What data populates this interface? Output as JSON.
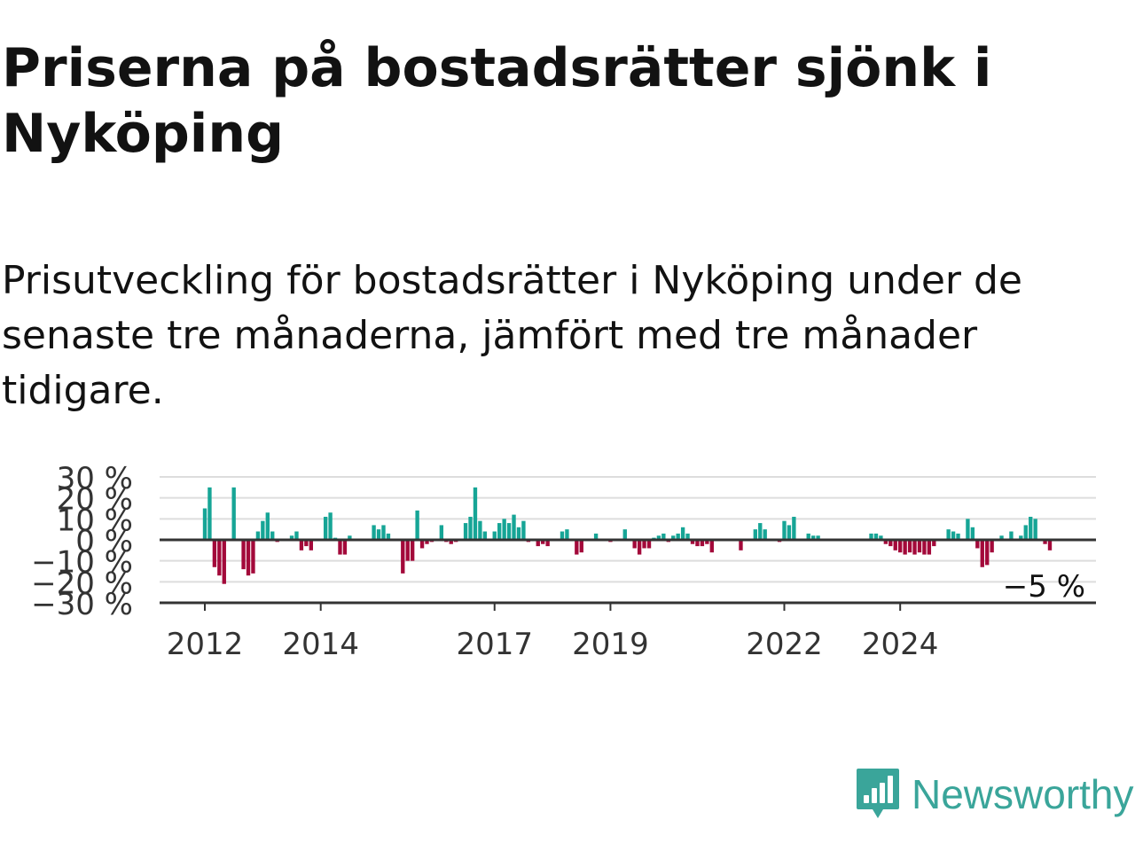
{
  "title": "Priserna på bostadsrätter sjönk i Nyköping",
  "subtitle": "Prisutveckling för bostadsrätter i Nyköping under de senaste tre månaderna, jämfört med tre månader tidigare.",
  "brand": {
    "name": "Newsworthy",
    "icon": "newsworthy-logo-icon",
    "color": "#3aa59a"
  },
  "colors": {
    "positive": "#16a596",
    "negative": "#a3093a",
    "grid": "#dddddd",
    "axis": "#333333"
  },
  "chart_data": {
    "type": "bar",
    "title": "Priserna på bostadsrätter sjönk i Nyköping",
    "xlabel": "",
    "ylabel": "",
    "ylim": [
      -30,
      30
    ],
    "yticks": [
      30,
      20,
      10,
      0,
      -10,
      -20,
      -30
    ],
    "ytick_labels": [
      "30 %",
      "20 %",
      "10 %",
      "0 %",
      "−10 %",
      "−20 %",
      "−30 %"
    ],
    "xticks": [
      2012,
      2014,
      2017,
      2019,
      2022,
      2024
    ],
    "x_start": "2012-01",
    "frequency": "monthly",
    "grid": true,
    "last_value_label": "−5 %",
    "values": [
      15,
      25,
      -13,
      -17,
      -21,
      0,
      25,
      0,
      -14,
      -17,
      -16,
      4,
      9,
      13,
      4,
      -1,
      0,
      0,
      2,
      4,
      -5,
      -3,
      -5,
      0,
      0,
      11,
      13,
      1,
      -7,
      -7,
      2,
      0,
      0,
      0,
      0,
      7,
      5,
      7,
      3,
      0,
      0,
      -16,
      -10,
      -10,
      14,
      -4,
      -2,
      -1,
      0,
      7,
      -1,
      -2,
      -1,
      0,
      8,
      11,
      25,
      9,
      4,
      0,
      4,
      8,
      10,
      8,
      12,
      6,
      9,
      -1,
      0,
      -3,
      -2,
      -3,
      0,
      0,
      4,
      5,
      0,
      -7,
      -6,
      0,
      0,
      3,
      0,
      0,
      -1,
      0,
      0,
      5,
      0,
      -4,
      -7,
      -4,
      -4,
      1,
      2,
      3,
      -1,
      2,
      3,
      6,
      3,
      -2,
      -3,
      -3,
      -2,
      -6,
      0,
      0,
      0,
      0,
      0,
      -5,
      0,
      0,
      5,
      8,
      5,
      0,
      0,
      -1,
      9,
      7,
      11,
      0,
      0,
      3,
      2,
      2,
      0,
      0,
      0,
      0,
      0,
      0,
      0,
      0,
      0,
      0,
      3,
      3,
      2,
      -2,
      -3,
      -5,
      -6,
      -7,
      -6,
      -7,
      -6,
      -7,
      -7,
      -3,
      0,
      0,
      5,
      4,
      3,
      0,
      10,
      6,
      -4,
      -13,
      -12,
      -6,
      0,
      2,
      0,
      4,
      0,
      2,
      7,
      11,
      10,
      0,
      -2,
      -5
    ]
  }
}
